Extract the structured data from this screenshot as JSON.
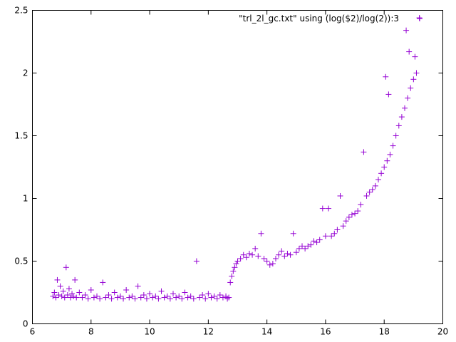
{
  "chart_data": {
    "type": "scatter",
    "title": "",
    "xlabel": "",
    "ylabel": "",
    "xlim": [
      6,
      20
    ],
    "ylim": [
      0,
      2.5
    ],
    "x_ticks": [
      6,
      8,
      10,
      12,
      14,
      16,
      18,
      20
    ],
    "y_ticks": [
      0,
      0.5,
      1,
      1.5,
      2,
      2.5
    ],
    "x_tick_labels": [
      "6",
      "8",
      "10",
      "12",
      "14",
      "16",
      "18",
      "20"
    ],
    "y_tick_labels": [
      "0",
      "0.5",
      "1",
      "1.5",
      "2",
      "2.5"
    ],
    "grid": false,
    "legend_position": "top-right",
    "series": [
      {
        "name": "\"trl_2l_gc.txt\" using (log($2)/log(2)):3",
        "color": "#9400d3",
        "marker": "plus",
        "points": [
          [
            6.7,
            0.22
          ],
          [
            6.75,
            0.25
          ],
          [
            6.8,
            0.21
          ],
          [
            6.85,
            0.35
          ],
          [
            6.9,
            0.23
          ],
          [
            6.95,
            0.3
          ],
          [
            7.0,
            0.22
          ],
          [
            7.05,
            0.26
          ],
          [
            7.1,
            0.21
          ],
          [
            7.15,
            0.45
          ],
          [
            7.2,
            0.23
          ],
          [
            7.25,
            0.28
          ],
          [
            7.3,
            0.21
          ],
          [
            7.35,
            0.24
          ],
          [
            7.4,
            0.22
          ],
          [
            7.45,
            0.35
          ],
          [
            7.5,
            0.21
          ],
          [
            7.6,
            0.25
          ],
          [
            7.7,
            0.21
          ],
          [
            7.8,
            0.23
          ],
          [
            7.9,
            0.2
          ],
          [
            8.0,
            0.27
          ],
          [
            8.1,
            0.21
          ],
          [
            8.2,
            0.22
          ],
          [
            8.3,
            0.2
          ],
          [
            8.4,
            0.33
          ],
          [
            8.5,
            0.21
          ],
          [
            8.6,
            0.23
          ],
          [
            8.7,
            0.2
          ],
          [
            8.8,
            0.25
          ],
          [
            8.9,
            0.21
          ],
          [
            9.0,
            0.22
          ],
          [
            9.1,
            0.2
          ],
          [
            9.2,
            0.27
          ],
          [
            9.3,
            0.21
          ],
          [
            9.4,
            0.22
          ],
          [
            9.5,
            0.2
          ],
          [
            9.6,
            0.3
          ],
          [
            9.7,
            0.21
          ],
          [
            9.8,
            0.23
          ],
          [
            9.9,
            0.2
          ],
          [
            10.0,
            0.24
          ],
          [
            10.1,
            0.21
          ],
          [
            10.2,
            0.22
          ],
          [
            10.3,
            0.2
          ],
          [
            10.4,
            0.26
          ],
          [
            10.5,
            0.21
          ],
          [
            10.6,
            0.22
          ],
          [
            10.7,
            0.2
          ],
          [
            10.8,
            0.24
          ],
          [
            10.9,
            0.21
          ],
          [
            11.0,
            0.22
          ],
          [
            11.1,
            0.2
          ],
          [
            11.2,
            0.25
          ],
          [
            11.3,
            0.21
          ],
          [
            11.4,
            0.22
          ],
          [
            11.5,
            0.2
          ],
          [
            11.6,
            0.5
          ],
          [
            11.7,
            0.21
          ],
          [
            11.8,
            0.23
          ],
          [
            11.9,
            0.2
          ],
          [
            12.0,
            0.24
          ],
          [
            12.1,
            0.21
          ],
          [
            12.2,
            0.22
          ],
          [
            12.3,
            0.2
          ],
          [
            12.4,
            0.23
          ],
          [
            12.5,
            0.21
          ],
          [
            12.6,
            0.22
          ],
          [
            12.65,
            0.2
          ],
          [
            12.7,
            0.21
          ],
          [
            12.75,
            0.33
          ],
          [
            12.8,
            0.38
          ],
          [
            12.85,
            0.42
          ],
          [
            12.9,
            0.45
          ],
          [
            12.95,
            0.48
          ],
          [
            13.0,
            0.5
          ],
          [
            13.1,
            0.52
          ],
          [
            13.2,
            0.55
          ],
          [
            13.3,
            0.53
          ],
          [
            13.4,
            0.56
          ],
          [
            13.5,
            0.55
          ],
          [
            13.6,
            0.6
          ],
          [
            13.7,
            0.54
          ],
          [
            13.8,
            0.72
          ],
          [
            13.9,
            0.52
          ],
          [
            14.0,
            0.5
          ],
          [
            14.1,
            0.47
          ],
          [
            14.2,
            0.48
          ],
          [
            14.3,
            0.52
          ],
          [
            14.4,
            0.55
          ],
          [
            14.5,
            0.58
          ],
          [
            14.6,
            0.54
          ],
          [
            14.7,
            0.56
          ],
          [
            14.8,
            0.55
          ],
          [
            14.9,
            0.72
          ],
          [
            15.0,
            0.57
          ],
          [
            15.1,
            0.6
          ],
          [
            15.2,
            0.62
          ],
          [
            15.3,
            0.6
          ],
          [
            15.4,
            0.62
          ],
          [
            15.5,
            0.63
          ],
          [
            15.6,
            0.66
          ],
          [
            15.7,
            0.65
          ],
          [
            15.8,
            0.67
          ],
          [
            15.9,
            0.92
          ],
          [
            16.0,
            0.7
          ],
          [
            16.1,
            0.92
          ],
          [
            16.2,
            0.7
          ],
          [
            16.3,
            0.72
          ],
          [
            16.4,
            0.75
          ],
          [
            16.5,
            1.02
          ],
          [
            16.6,
            0.78
          ],
          [
            16.7,
            0.82
          ],
          [
            16.8,
            0.85
          ],
          [
            16.9,
            0.87
          ],
          [
            17.0,
            0.88
          ],
          [
            17.1,
            0.9
          ],
          [
            17.2,
            0.95
          ],
          [
            17.3,
            1.37
          ],
          [
            17.4,
            1.02
          ],
          [
            17.5,
            1.05
          ],
          [
            17.6,
            1.07
          ],
          [
            17.7,
            1.1
          ],
          [
            17.8,
            1.15
          ],
          [
            17.9,
            1.2
          ],
          [
            18.0,
            1.25
          ],
          [
            18.05,
            1.97
          ],
          [
            18.1,
            1.3
          ],
          [
            18.15,
            1.83
          ],
          [
            18.2,
            1.35
          ],
          [
            18.3,
            1.42
          ],
          [
            18.4,
            1.5
          ],
          [
            18.5,
            1.58
          ],
          [
            18.6,
            1.65
          ],
          [
            18.7,
            1.72
          ],
          [
            18.75,
            2.34
          ],
          [
            18.8,
            1.8
          ],
          [
            18.85,
            2.17
          ],
          [
            18.9,
            1.88
          ],
          [
            19.0,
            1.95
          ],
          [
            19.05,
            2.13
          ],
          [
            19.1,
            2.0
          ],
          [
            19.2,
            2.44
          ]
        ]
      }
    ]
  }
}
